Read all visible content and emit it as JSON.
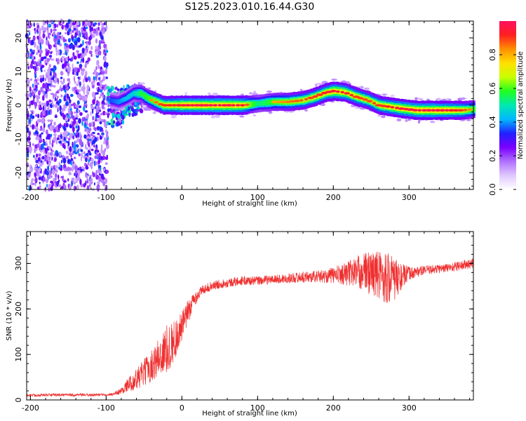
{
  "title": "S125.2023.010.16.44.G30",
  "chart_data": [
    {
      "type": "heatmap",
      "xlabel": "Height of straight line (km)",
      "ylabel": "Frequency (Hz)",
      "xlim": [
        -205,
        385
      ],
      "ylim": [
        -25,
        25
      ],
      "xticks": [
        "-200",
        "-100",
        "0",
        "100",
        "200",
        "300"
      ],
      "xtick_values": [
        -200,
        -100,
        0,
        100,
        200,
        300
      ],
      "yticks": [
        "20",
        "10",
        "0",
        "-10",
        "-20"
      ],
      "ytick_values": [
        20,
        10,
        0,
        -10,
        -20
      ],
      "noise_region_x": [
        -205,
        -98
      ],
      "ridge": {
        "description_points_x": [
          -95,
          -85,
          -75,
          -65,
          -55,
          -45,
          -35,
          -25,
          -10,
          0,
          20,
          50,
          80,
          100,
          120,
          140,
          160,
          175,
          190,
          200,
          215,
          230,
          245,
          260,
          275,
          290,
          310,
          340,
          370,
          385
        ],
        "frequency_hz": [
          1.5,
          1.0,
          2.0,
          3.5,
          3.5,
          2.0,
          1.0,
          0.0,
          0.0,
          0.0,
          0.0,
          0.0,
          0.0,
          0.5,
          1.0,
          1.0,
          1.5,
          2.5,
          3.8,
          4.2,
          3.8,
          2.5,
          1.5,
          0.0,
          -0.5,
          -1.0,
          -1.5,
          -1.5,
          -1.5,
          -1.2
        ],
        "peak_amplitude": [
          0.45,
          0.5,
          0.55,
          0.6,
          0.75,
          0.8,
          0.85,
          0.9,
          0.92,
          0.95,
          0.97,
          0.98,
          0.95,
          0.7,
          0.8,
          0.85,
          0.88,
          0.9,
          0.92,
          0.95,
          0.93,
          0.9,
          0.88,
          0.9,
          0.92,
          0.95,
          0.97,
          0.97,
          0.9,
          0.8
        ]
      },
      "colorbar": {
        "label": "Normalized spectral amplitude",
        "range": [
          0,
          1
        ],
        "ticks": [
          "0.0",
          "0.2",
          "0.4",
          "0.6",
          "0.8"
        ],
        "tick_values": [
          0,
          0.2,
          0.4,
          0.6,
          0.8
        ],
        "colormap": [
          "#ffffff",
          "#e0c8ff",
          "#b070ff",
          "#7a00ff",
          "#2020ff",
          "#00b8ff",
          "#00e8b0",
          "#20ff20",
          "#c8ff00",
          "#ffe000",
          "#ff9000",
          "#ff2020",
          "#ff1060"
        ]
      }
    },
    {
      "type": "line",
      "xlabel": "Height of straight line (km)",
      "ylabel": "SNR (10 * v/v)",
      "xlim": [
        -205,
        385
      ],
      "ylim": [
        0,
        370
      ],
      "xticks": [
        "-200",
        "-100",
        "0",
        "100",
        "200",
        "300"
      ],
      "xtick_values": [
        -200,
        -100,
        0,
        100,
        200,
        300
      ],
      "yticks": [
        "300",
        "200",
        "100",
        "0"
      ],
      "ytick_values": [
        300,
        200,
        100,
        0
      ],
      "series": [
        {
          "color": "#f03030",
          "x": [
            -205,
            -180,
            -150,
            -120,
            -100,
            -90,
            -80,
            -70,
            -60,
            -50,
            -40,
            -30,
            -20,
            -10,
            0,
            10,
            20,
            30,
            50,
            80,
            100,
            130,
            160,
            190,
            210,
            230,
            250,
            270,
            280,
            290,
            300,
            320,
            350,
            385
          ],
          "y": [
            10,
            11,
            11,
            11,
            12,
            13,
            20,
            35,
            45,
            60,
            75,
            95,
            110,
            130,
            160,
            200,
            230,
            245,
            255,
            262,
            262,
            266,
            270,
            272,
            276,
            282,
            280,
            270,
            265,
            270,
            278,
            285,
            290,
            300
          ],
          "noise_amplitude": [
            3,
            3,
            3,
            3,
            3,
            3,
            8,
            15,
            25,
            30,
            35,
            45,
            55,
            45,
            35,
            25,
            15,
            10,
            10,
            10,
            10,
            10,
            12,
            15,
            22,
            35,
            50,
            60,
            50,
            30,
            15,
            10,
            10,
            12
          ]
        }
      ]
    }
  ]
}
